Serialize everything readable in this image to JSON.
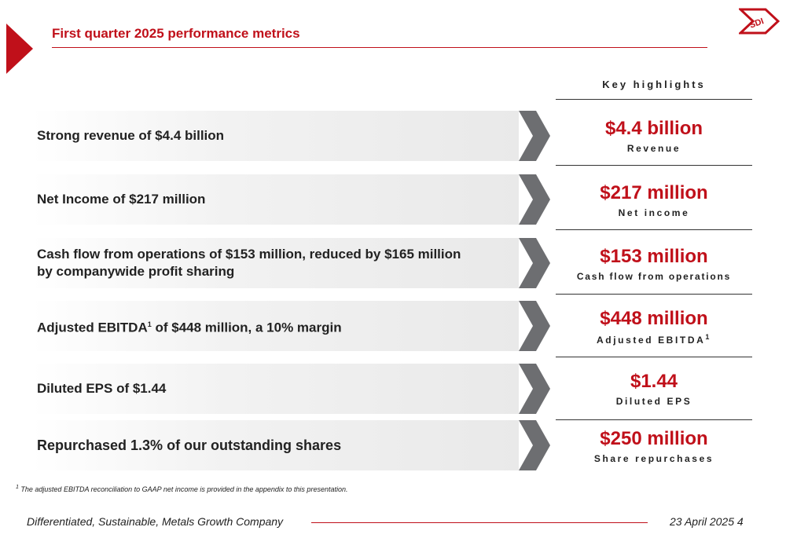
{
  "header": {
    "title": "First quarter 2025 performance metrics",
    "logo_text": "SDI",
    "accent_color": "#c0101a"
  },
  "key_highlights_label": "Key highlights",
  "rows": [
    {
      "text": "Strong revenue of $4.4 billion",
      "value": "$4.4 billion",
      "label": "Revenue"
    },
    {
      "text": "Net Income of $217 million",
      "value": "$217 million",
      "label": "Net income"
    },
    {
      "text_line1": "Cash flow from operations of $153 million, reduced by $165 million",
      "text_line2": "by companywide profit sharing",
      "value": "$153 million",
      "label": "Cash flow from operations"
    },
    {
      "text_pre": "Adjusted EBITDA",
      "text_sup": "1",
      "text_post": " of $448 million, a 10% margin",
      "value": "$448 million",
      "label": "Adjusted EBITDA",
      "label_sup": "1"
    },
    {
      "text": "Diluted EPS of $1.44",
      "value": "$1.44",
      "label": "Diluted EPS"
    },
    {
      "text": "Repurchased 1.3% of our outstanding shares",
      "value": "$250 million",
      "label": "Share repurchases"
    }
  ],
  "footnote": {
    "marker": "1",
    "text": " The adjusted EBITDA reconciliation to GAAP net income is provided in the appendix to this presentation."
  },
  "footer": {
    "tagline": "Differentiated, Sustainable, Metals Growth Company",
    "date_page": "23 April 2025  4"
  }
}
